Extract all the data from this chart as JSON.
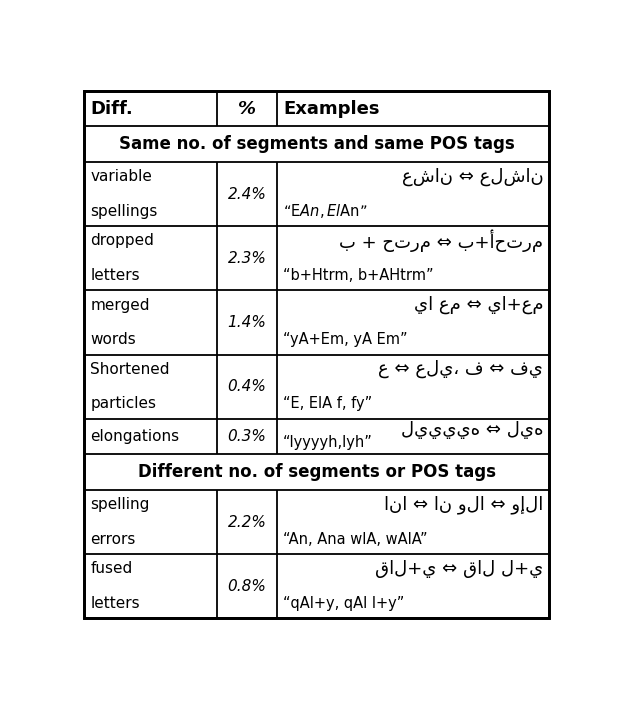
{
  "col_headers": [
    "Diff.",
    "%",
    "Examples"
  ],
  "section1_header": "Same no. of segments and same POS tags",
  "section2_header": "Different no. of segments or POS tags",
  "rows_section1": [
    {
      "diff_lines": [
        "variable",
        "spellings"
      ],
      "pct": "2.4%",
      "example_arabic": "عشان ⇔ علشان",
      "example_latin": "“E$An, El$An”"
    },
    {
      "diff_lines": [
        "dropped",
        "letters"
      ],
      "pct": "2.3%",
      "example_arabic": "ب + حترم ⇔ ب+أحترم",
      "example_latin": "“b+Htrm, b+AHtrm”"
    },
    {
      "diff_lines": [
        "merged",
        "words"
      ],
      "pct": "1.4%",
      "example_arabic": "يا عم ⇔ يا+عم",
      "example_latin": "“yA+Em, yA Em”"
    },
    {
      "diff_lines": [
        "Shortened",
        "particles"
      ],
      "pct": "0.4%",
      "example_arabic": "ع ⇔ علي، ف ⇔ في",
      "example_latin": "“E, ElA f, fy”"
    },
    {
      "diff_lines": [
        "elongations"
      ],
      "pct": "0.3%",
      "example_arabic": "لييييه ⇔ ليه",
      "example_latin": "“lyyyyh,lyh”"
    }
  ],
  "rows_section2": [
    {
      "diff_lines": [
        "spelling",
        "errors"
      ],
      "pct": "2.2%",
      "example_arabic": "انا ⇔ ان ولا ⇔ وإلا",
      "example_latin": "“An, Ana wlA, wAlA”"
    },
    {
      "diff_lines": [
        "fused",
        "letters"
      ],
      "pct": "0.8%",
      "example_arabic": "قال+ي ⇔ قال ل+ي",
      "example_latin": "“qAl+y, qAl l+y”"
    }
  ],
  "bg_color": "#ffffff",
  "border_color": "#000000",
  "figsize": [
    6.18,
    7.02
  ],
  "dpi": 100
}
